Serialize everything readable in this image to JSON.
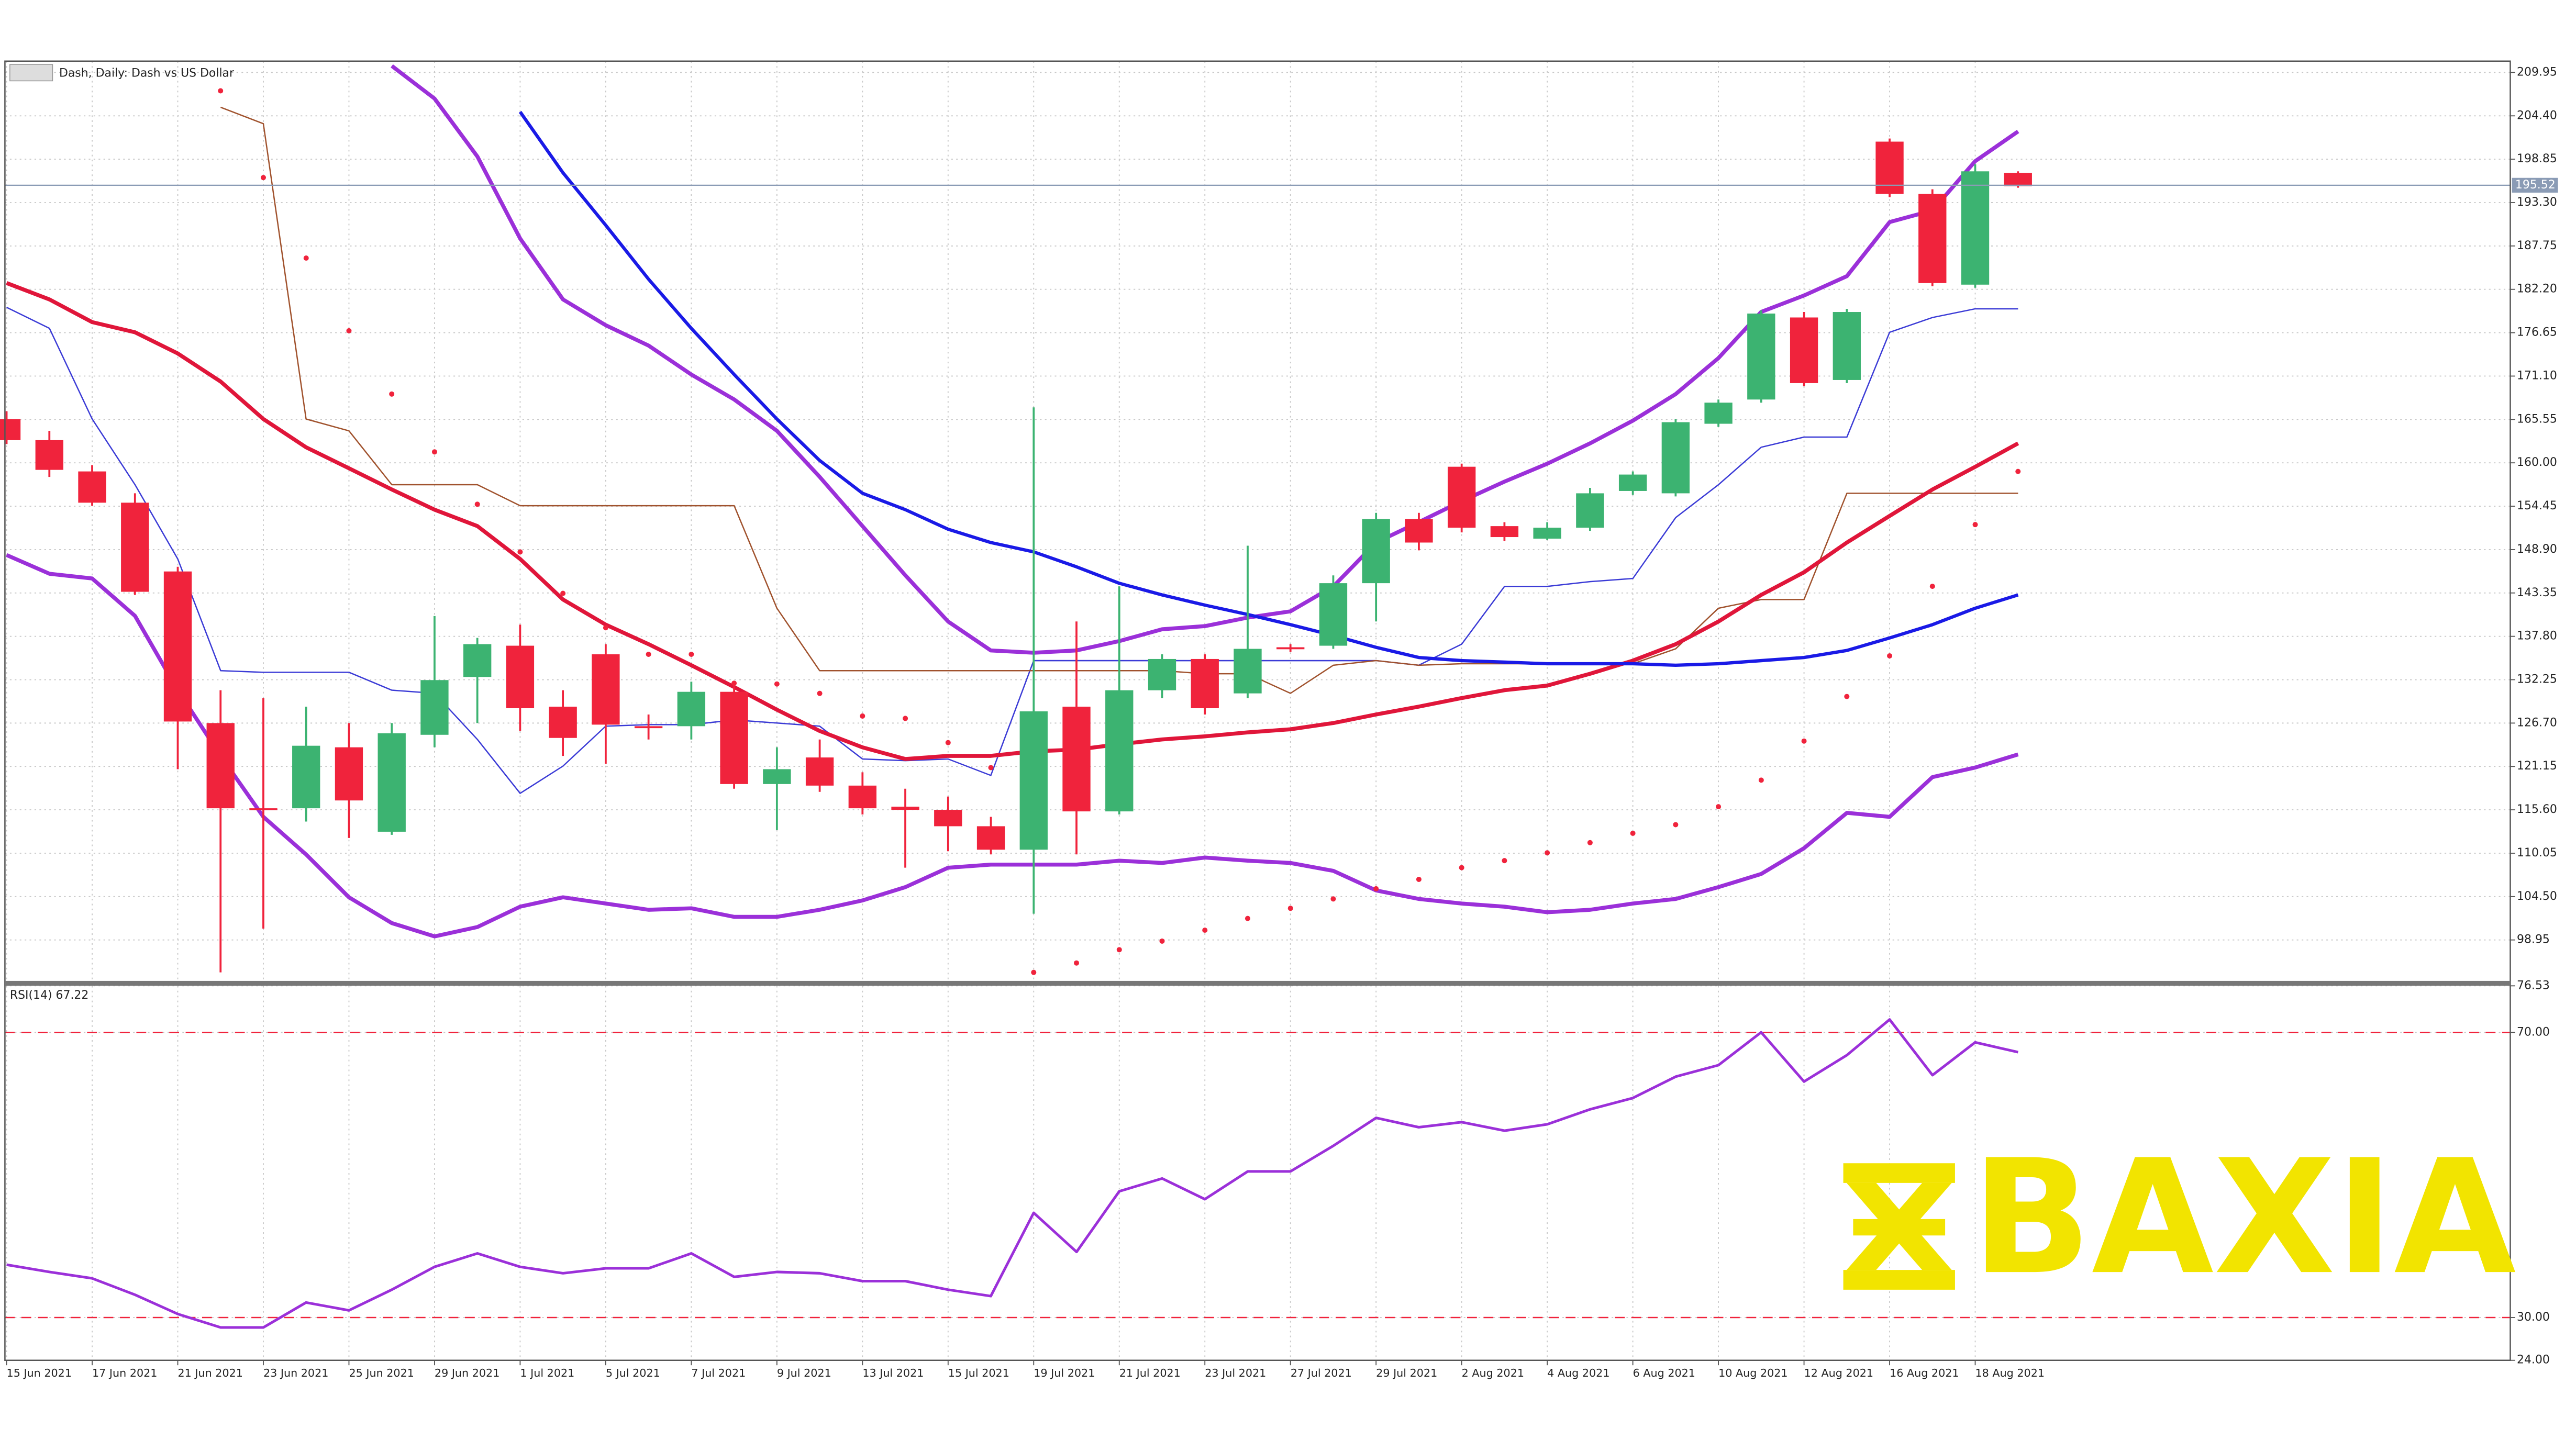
{
  "watermark": "BAXIA",
  "chart_data": [
    {
      "type": "candlestick",
      "title": "Dash, Daily: Dash vs US Dollar",
      "categories": [
        "15 Jun 2021",
        null,
        "17 Jun 2021",
        null,
        "21 Jun 2021",
        null,
        "23 Jun 2021",
        null,
        "25 Jun 2021",
        null,
        "29 Jun 2021",
        null,
        "1 Jul 2021",
        null,
        "5 Jul 2021",
        null,
        "7 Jul 2021",
        null,
        "9 Jul 2021",
        null,
        "13 Jul 2021",
        null,
        "15 Jul 2021",
        null,
        "19 Jul 2021",
        null,
        "21 Jul 2021",
        null,
        "23 Jul 2021",
        null,
        "27 Jul 2021",
        null,
        "29 Jul 2021",
        null,
        "2 Aug 2021",
        null,
        "4 Aug 2021",
        null,
        "6 Aug 2021",
        null,
        "10 Aug 2021",
        null,
        "12 Aug 2021",
        null,
        "16 Aug 2021",
        null,
        "18 Aug 2021",
        null
      ],
      "open": [
        165.6,
        162.9,
        158.9,
        154.9,
        146.1,
        126.7,
        115.8,
        115.8,
        123.6,
        112.8,
        125.2,
        132.6,
        136.6,
        128.8,
        135.5,
        126.3,
        126.3,
        130.7,
        118.9,
        122.3,
        118.7,
        116.0,
        115.6,
        113.5,
        110.5,
        128.8,
        115.4,
        130.9,
        134.9,
        130.5,
        136.4,
        136.6,
        144.6,
        152.8,
        159.5,
        151.9,
        150.3,
        151.7,
        156.4,
        156.1,
        165.0,
        168.1,
        178.6,
        170.6,
        201.1,
        194.4,
        182.8,
        197.1
      ],
      "high": [
        166.6,
        164.1,
        159.7,
        156.1,
        146.7,
        130.9,
        129.9,
        128.8,
        126.7,
        126.7,
        140.4,
        137.6,
        139.3,
        130.9,
        136.8,
        127.8,
        132.0,
        132.0,
        123.6,
        124.6,
        120.4,
        118.3,
        117.3,
        114.7,
        167.1,
        139.7,
        144.2,
        135.5,
        135.5,
        149.4,
        136.8,
        145.6,
        153.6,
        153.6,
        159.9,
        152.4,
        152.4,
        156.8,
        158.9,
        165.6,
        168.1,
        179.5,
        179.3,
        179.7,
        201.5,
        195.0,
        198.2,
        197.3
      ],
      "low": [
        162.4,
        158.2,
        154.5,
        143.1,
        120.8,
        94.8,
        100.4,
        114.1,
        112.0,
        112.4,
        123.6,
        126.7,
        125.7,
        122.5,
        121.5,
        124.6,
        124.6,
        118.3,
        113.0,
        117.9,
        115.0,
        108.2,
        110.3,
        109.9,
        102.3,
        109.9,
        115.0,
        129.9,
        127.8,
        129.9,
        135.8,
        136.2,
        139.7,
        148.8,
        151.1,
        150.0,
        150.1,
        151.3,
        155.9,
        155.7,
        164.6,
        167.7,
        169.8,
        170.2,
        194.0,
        182.6,
        182.4,
        195.2
      ],
      "close": [
        162.9,
        159.1,
        154.9,
        143.5,
        126.9,
        115.8,
        115.7,
        123.8,
        116.8,
        125.4,
        132.2,
        136.8,
        128.6,
        124.8,
        126.5,
        126.2,
        130.7,
        118.9,
        120.8,
        118.7,
        115.8,
        115.6,
        113.5,
        110.5,
        128.2,
        115.4,
        130.9,
        134.9,
        128.6,
        136.2,
        136.3,
        144.6,
        152.8,
        149.8,
        151.7,
        150.5,
        151.7,
        156.1,
        158.5,
        165.2,
        167.7,
        179.1,
        170.2,
        179.3,
        194.4,
        183.0,
        197.3,
        195.4
      ],
      "up_color": "#3cb371",
      "down_color": "#f0233c",
      "overlays": [
        {
          "style": "line",
          "color": "#3b3bd6",
          "width": 0.8,
          "values": [
            179.9,
            177.2,
            165.6,
            157.2,
            147.7,
            133.4,
            133.2,
            133.2,
            133.2,
            130.9,
            130.5,
            124.6,
            117.7,
            121.2,
            126.3,
            126.5,
            126.5,
            127.1,
            126.7,
            126.3,
            122.1,
            121.9,
            122.1,
            120.0,
            134.7,
            134.7,
            134.7,
            134.7,
            134.7,
            134.7,
            134.7,
            134.7,
            134.7,
            134.1,
            136.8,
            144.2,
            144.2,
            144.8,
            145.2,
            153.0,
            157.2,
            162.0,
            163.3,
            163.3,
            176.7,
            178.6,
            179.7,
            179.7
          ]
        },
        {
          "style": "line",
          "color": "#a0522d",
          "width": 0.8,
          "values": [
            null,
            null,
            null,
            null,
            null,
            205.5,
            203.4,
            165.6,
            164.1,
            157.2,
            157.2,
            157.2,
            154.5,
            154.5,
            154.5,
            154.5,
            154.5,
            154.5,
            141.4,
            133.4,
            133.4,
            133.4,
            133.4,
            133.4,
            133.4,
            133.4,
            133.4,
            133.4,
            133.0,
            133.0,
            130.5,
            134.1,
            134.7,
            134.1,
            134.3,
            134.3,
            134.3,
            134.3,
            134.3,
            136.2,
            141.4,
            142.5,
            142.5,
            156.1,
            156.1,
            156.1,
            156.1,
            156.1
          ]
        },
        {
          "style": "line",
          "color": "#9b30d9",
          "width": 2.4,
          "values": [
            null,
            null,
            null,
            null,
            null,
            null,
            null,
            null,
            null,
            210.8,
            206.6,
            199.2,
            188.7,
            180.9,
            177.6,
            175.0,
            171.3,
            168.1,
            164.1,
            158.2,
            151.9,
            145.6,
            139.7,
            136.0,
            135.7,
            136.0,
            137.2,
            138.7,
            139.1,
            140.2,
            141.0,
            144.2,
            149.8,
            152.4,
            155.1,
            157.6,
            159.9,
            162.5,
            165.4,
            168.8,
            173.4,
            179.3,
            181.4,
            183.9,
            190.8,
            192.3,
            198.6,
            202.4
          ]
        },
        {
          "style": "line",
          "color": "#9b30d9",
          "width": 2.4,
          "values": [
            148.2,
            145.8,
            145.2,
            140.4,
            130.9,
            122.5,
            114.7,
            109.9,
            104.4,
            101.1,
            99.4,
            100.6,
            103.2,
            104.4,
            103.6,
            102.8,
            103.0,
            101.9,
            101.9,
            102.8,
            104.0,
            105.7,
            108.2,
            108.6,
            108.6,
            108.6,
            109.1,
            108.8,
            109.5,
            109.1,
            108.8,
            107.8,
            105.3,
            104.2,
            103.6,
            103.2,
            102.5,
            102.8,
            103.6,
            104.2,
            105.7,
            107.4,
            110.7,
            115.2,
            114.7,
            119.8,
            121.0,
            122.7
          ]
        },
        {
          "style": "line",
          "color": "#e0163a",
          "width": 2.4,
          "values": [
            183.0,
            180.9,
            178.0,
            176.7,
            174.0,
            170.4,
            165.6,
            162.0,
            159.3,
            156.6,
            154.0,
            151.9,
            147.7,
            142.5,
            139.3,
            136.8,
            134.1,
            131.3,
            128.4,
            125.7,
            123.6,
            122.1,
            122.5,
            122.5,
            123.1,
            123.3,
            124.0,
            124.6,
            125.0,
            125.5,
            125.9,
            126.7,
            127.8,
            128.8,
            129.9,
            130.9,
            131.5,
            133.0,
            134.7,
            136.8,
            139.7,
            143.1,
            146.0,
            149.8,
            153.2,
            156.6,
            159.5,
            162.5
          ]
        },
        {
          "style": "line",
          "color": "#1a1ae6",
          "width": 2.0,
          "values": [
            null,
            null,
            null,
            null,
            null,
            null,
            null,
            null,
            null,
            null,
            null,
            null,
            204.9,
            197.1,
            190.4,
            183.5,
            177.2,
            171.3,
            165.6,
            160.3,
            156.1,
            154.0,
            151.5,
            149.8,
            148.6,
            146.7,
            144.6,
            143.1,
            141.8,
            140.6,
            139.3,
            137.9,
            136.4,
            135.1,
            134.7,
            134.5,
            134.3,
            134.3,
            134.3,
            134.1,
            134.3,
            134.7,
            135.1,
            136.0,
            137.6,
            139.3,
            141.4,
            143.1
          ]
        },
        {
          "style": "dots",
          "color": "#f0233c",
          "width": 1.6,
          "values": [
            null,
            null,
            null,
            null,
            null,
            207.6,
            196.5,
            186.2,
            176.9,
            168.8,
            161.4,
            154.7,
            148.6,
            143.3,
            138.9,
            135.5,
            135.5,
            131.8,
            131.7,
            130.5,
            127.6,
            127.3,
            124.2,
            121.0,
            94.8,
            96.0,
            97.7,
            98.8,
            100.2,
            101.7,
            103.0,
            104.2,
            105.5,
            106.7,
            108.2,
            109.1,
            110.1,
            111.4,
            112.6,
            113.7,
            116.0,
            119.4,
            124.4,
            130.1,
            135.3,
            144.2,
            152.1,
            158.9
          ]
        }
      ],
      "current_price": 195.52,
      "ylim": [
        93.5,
        211.4
      ],
      "yticks": [
        209.95,
        {
          "value": 204.4,
          "label": "204.40"
        },
        198.85,
        {
          "value": 193.3,
          "label": "193.30"
        },
        187.75,
        {
          "value": 182.2,
          "label": "182.20"
        },
        176.65,
        {
          "value": 171.1,
          "label": "171.10"
        },
        165.55,
        {
          "value": 160,
          "label": "160.00"
        },
        154.45,
        {
          "value": 148.9,
          "label": "148.90"
        },
        143.35,
        {
          "value": 137.8,
          "label": "137.80"
        },
        132.25,
        {
          "value": 126.7,
          "label": "126.70"
        },
        121.15,
        {
          "value": 115.6,
          "label": "115.60"
        },
        110.05,
        {
          "value": 104.5,
          "label": "104.50"
        },
        98.95
      ],
      "grid": true
    },
    {
      "type": "line",
      "title": "RSI(14) 67.22",
      "series": [
        {
          "color": "#9b30d9",
          "values": [
            37.4,
            36.4,
            35.5,
            33.2,
            30.5,
            28.6,
            28.6,
            32.1,
            31.0,
            33.9,
            37.1,
            39.0,
            37.1,
            36.2,
            36.9,
            36.9,
            39.0,
            35.7,
            36.4,
            36.2,
            35.1,
            35.1,
            33.9,
            33.0,
            44.7,
            39.2,
            47.7,
            49.5,
            46.6,
            50.5,
            50.5,
            54.1,
            58.0,
            56.7,
            57.4,
            56.2,
            57.1,
            59.2,
            60.8,
            63.8,
            65.4,
            70.0,
            63.1,
            66.8,
            71.8,
            64.0,
            68.6,
            67.22
          ]
        }
      ],
      "ylim": [
        24,
        76.53
      ],
      "yticks": [
        76.53,
        {
          "value": 70,
          "label": "70.00"
        },
        {
          "value": 30,
          "label": "30.00"
        },
        {
          "value": 24,
          "label": "24.00"
        }
      ],
      "level_lines": [
        70,
        30
      ],
      "level_color": "#f0233c",
      "grid": true
    }
  ]
}
